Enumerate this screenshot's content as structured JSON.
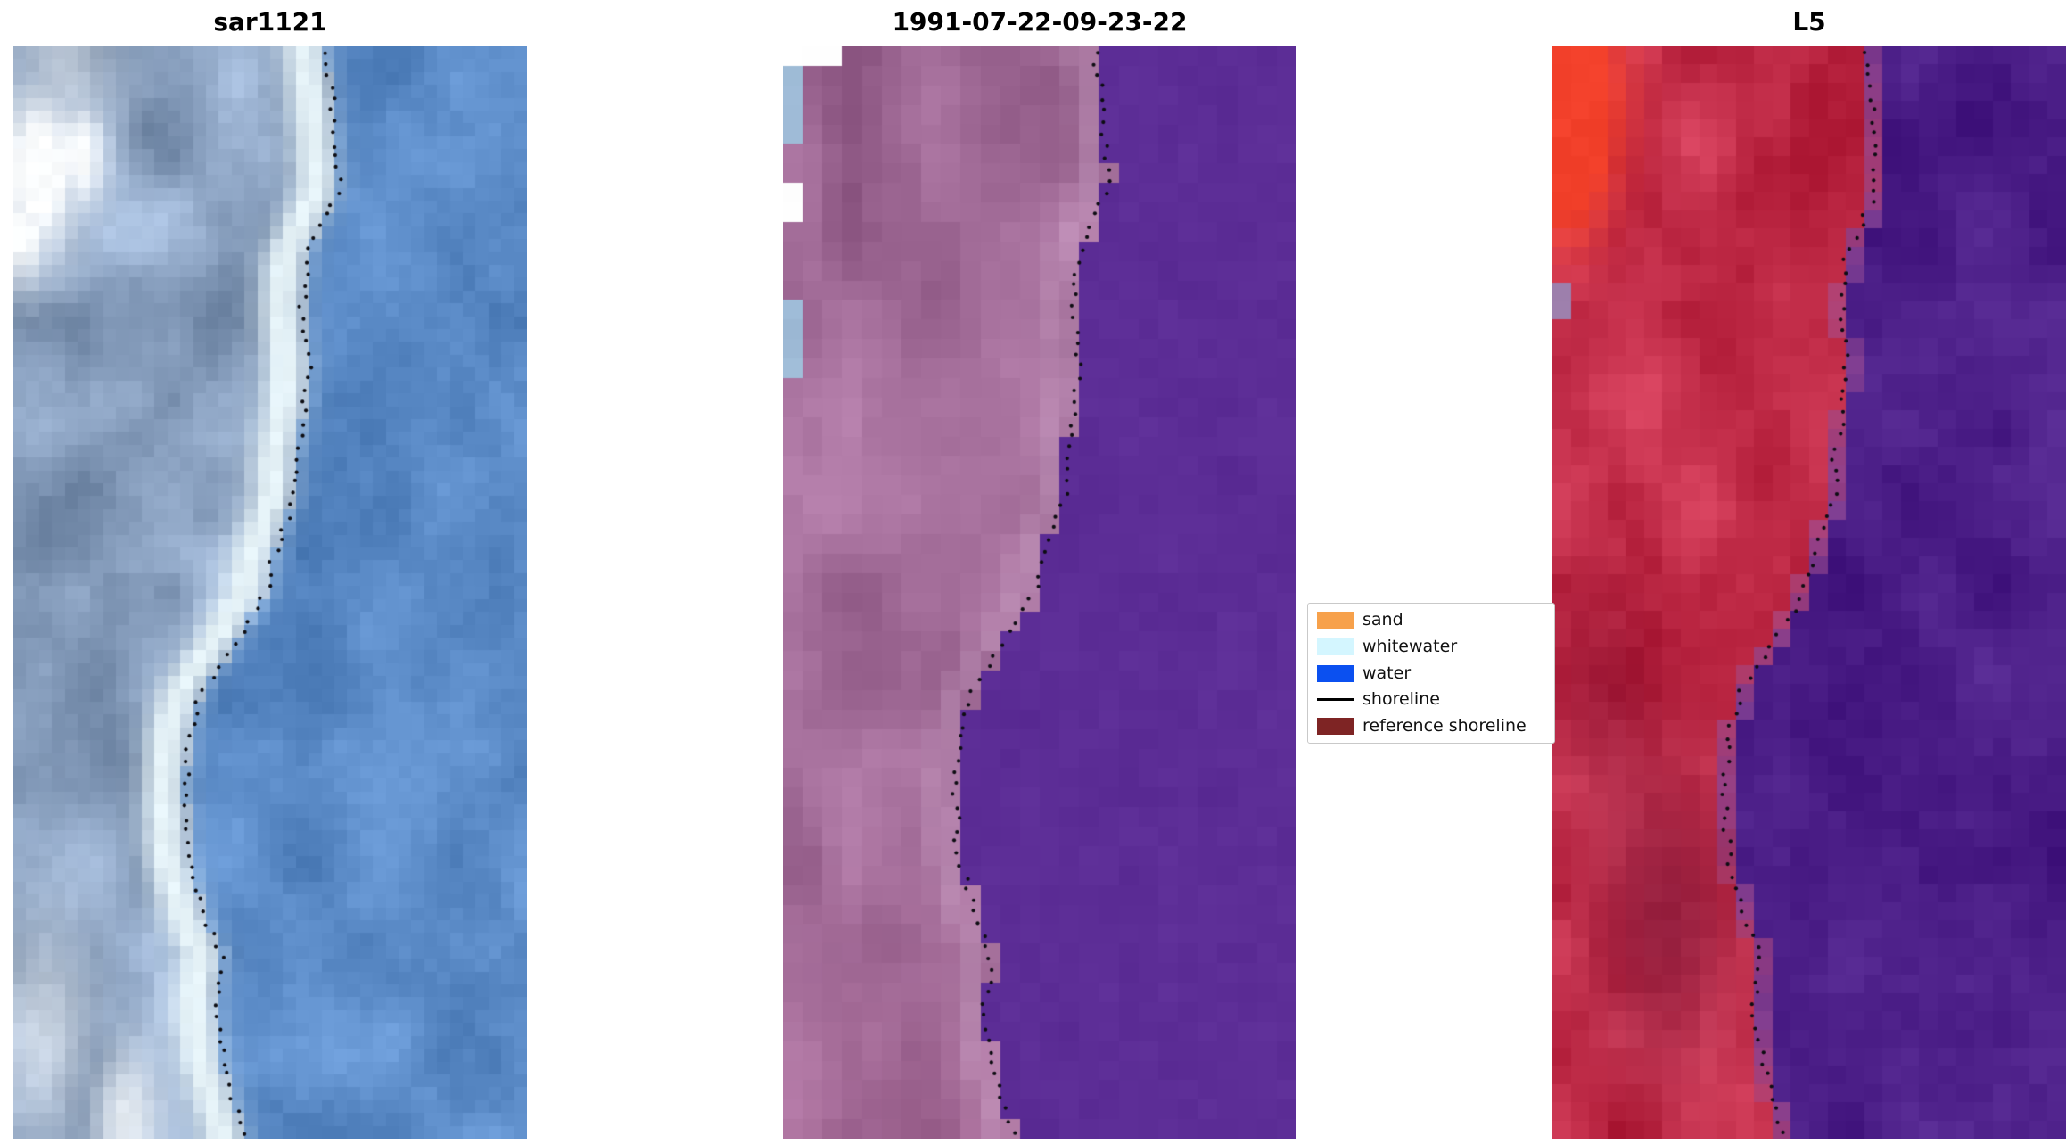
{
  "figure": {
    "panels": [
      {
        "title": "sar1121",
        "type": "sar",
        "palette": {
          "land": "#8ca3c2",
          "water": "#5c8cc8",
          "whitewater": "#e6f3f8",
          "cloud": "#fbfdfe"
        }
      },
      {
        "title": "1991-07-22-09-23-22",
        "type": "classified",
        "palette": {
          "land": "#a06a96",
          "land_pink": "#c07ba8",
          "band": "#c9a0c4",
          "water": "#5c2d96",
          "edge_blue": "#9ec9e2",
          "nodata": "#ffffff"
        }
      },
      {
        "title": "L5",
        "type": "landsat",
        "palette": {
          "land": "#c22d49",
          "land_bright": "#f2402a",
          "land_dark": "#8e1c3c",
          "water": "#4b1e87",
          "transition": "#a85ba0"
        }
      }
    ],
    "legend": {
      "items": [
        {
          "label": "sand",
          "color": "#f7a14b",
          "kind": "patch"
        },
        {
          "label": "whitewater",
          "color": "#d4f6ff",
          "kind": "patch"
        },
        {
          "label": "water",
          "color": "#0b50f0",
          "kind": "patch"
        },
        {
          "label": "shoreline",
          "color": "#000000",
          "kind": "line"
        },
        {
          "label": "reference shoreline",
          "color": "#7e2424",
          "kind": "patch"
        }
      ]
    },
    "colors": {
      "shoreline_dots": "#0d0d12",
      "background": "#ffffff",
      "title_text": "#000000"
    },
    "shoreline": {
      "points_tx": [
        [
          0.0,
          0.607
        ],
        [
          0.07,
          0.625
        ],
        [
          0.13,
          0.633
        ],
        [
          0.15,
          0.615
        ],
        [
          0.19,
          0.574
        ],
        [
          0.24,
          0.563
        ],
        [
          0.29,
          0.574
        ],
        [
          0.33,
          0.568
        ],
        [
          0.38,
          0.548
        ],
        [
          0.41,
          0.548
        ],
        [
          0.47,
          0.504
        ],
        [
          0.5,
          0.491
        ],
        [
          0.55,
          0.426
        ],
        [
          0.59,
          0.367
        ],
        [
          0.63,
          0.344
        ],
        [
          0.67,
          0.336
        ],
        [
          0.74,
          0.341
        ],
        [
          0.8,
          0.375
        ],
        [
          0.83,
          0.406
        ],
        [
          0.88,
          0.393
        ],
        [
          0.93,
          0.408
        ],
        [
          0.98,
          0.439
        ],
        [
          1.0,
          0.452
        ]
      ]
    }
  },
  "chart_data": {
    "type": "line",
    "title": "",
    "panel_titles": [
      "sar1121",
      "1991-07-22-09-23-22",
      "L5"
    ],
    "legend_entries": [
      "sand",
      "whitewater",
      "water",
      "shoreline",
      "reference shoreline"
    ],
    "series": [
      {
        "name": "shoreline (normalized y-fraction vs x-fraction, identical in all 3 panels)",
        "x": [
          0.0,
          0.07,
          0.13,
          0.15,
          0.19,
          0.24,
          0.29,
          0.33,
          0.38,
          0.41,
          0.47,
          0.5,
          0.55,
          0.59,
          0.63,
          0.67,
          0.74,
          0.8,
          0.83,
          0.88,
          0.93,
          0.98,
          1.0
        ],
        "y": [
          0.607,
          0.625,
          0.633,
          0.615,
          0.574,
          0.563,
          0.574,
          0.568,
          0.548,
          0.548,
          0.504,
          0.491,
          0.426,
          0.367,
          0.344,
          0.336,
          0.341,
          0.375,
          0.406,
          0.393,
          0.408,
          0.439,
          0.452
        ]
      }
    ],
    "axes": "none (image panels, axes hidden)",
    "legend_position": "center, between second and third panel"
  }
}
